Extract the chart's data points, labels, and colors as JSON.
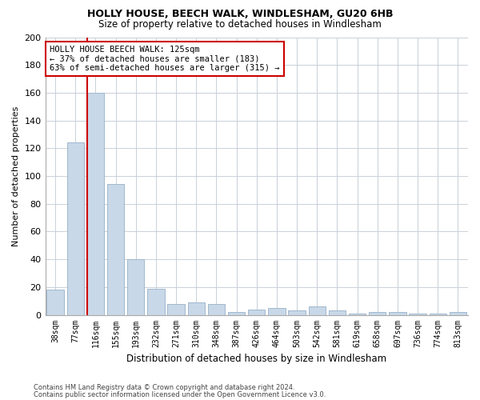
{
  "title1": "HOLLY HOUSE, BEECH WALK, WINDLESHAM, GU20 6HB",
  "title2": "Size of property relative to detached houses in Windlesham",
  "xlabel": "Distribution of detached houses by size in Windlesham",
  "ylabel": "Number of detached properties",
  "categories": [
    "38sqm",
    "77sqm",
    "116sqm",
    "155sqm",
    "193sqm",
    "232sqm",
    "271sqm",
    "310sqm",
    "348sqm",
    "387sqm",
    "426sqm",
    "464sqm",
    "503sqm",
    "542sqm",
    "581sqm",
    "619sqm",
    "658sqm",
    "697sqm",
    "736sqm",
    "774sqm",
    "813sqm"
  ],
  "values": [
    18,
    124,
    160,
    94,
    40,
    19,
    8,
    9,
    8,
    2,
    4,
    5,
    3,
    6,
    3,
    1,
    2,
    2,
    1,
    1,
    2
  ],
  "bar_color": "#c8d8e8",
  "bar_edge_color": "#a0b8cc",
  "highlight_bar_index": 2,
  "highlight_color": "#cc0000",
  "annotation_text": "HOLLY HOUSE BEECH WALK: 125sqm\n← 37% of detached houses are smaller (183)\n63% of semi-detached houses are larger (315) →",
  "annotation_box_color": "#ffffff",
  "annotation_box_edge": "#cc0000",
  "ylim": [
    0,
    200
  ],
  "yticks": [
    0,
    20,
    40,
    60,
    80,
    100,
    120,
    140,
    160,
    180,
    200
  ],
  "footer1": "Contains HM Land Registry data © Crown copyright and database right 2024.",
  "footer2": "Contains public sector information licensed under the Open Government Licence v3.0.",
  "bg_color": "#ffffff",
  "grid_color": "#c8d0d8",
  "title1_fontsize": 9,
  "title2_fontsize": 8.5
}
